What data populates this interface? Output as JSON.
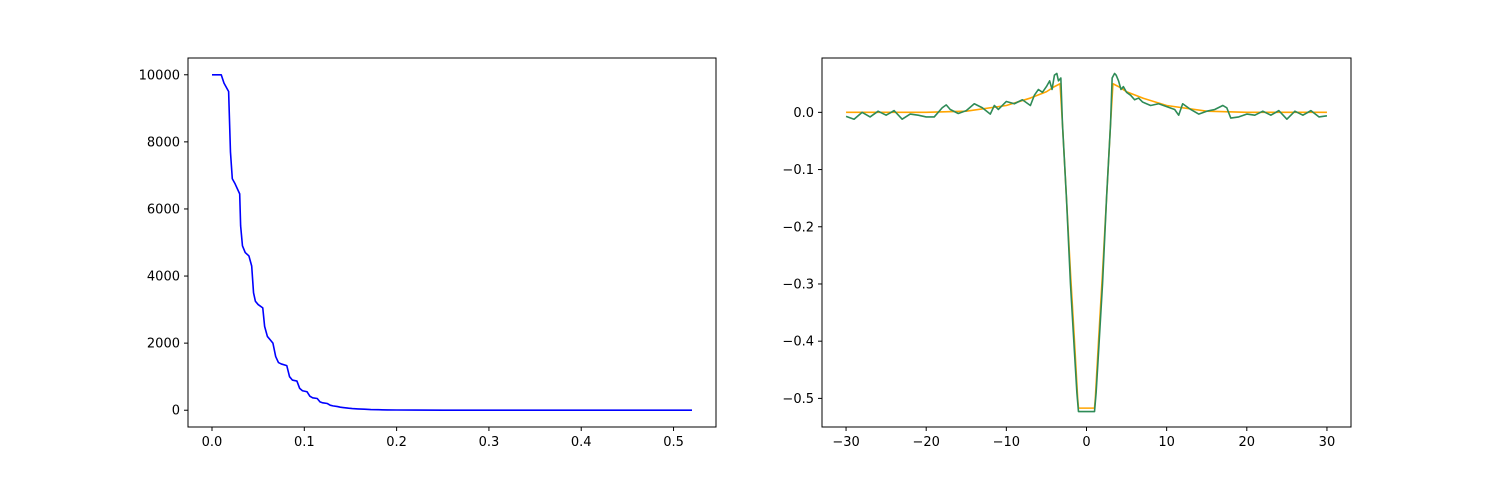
{
  "chart_data": [
    {
      "type": "line",
      "title": "",
      "xlabel": "",
      "ylabel": "",
      "xlim": [
        -0.026,
        0.546
      ],
      "ylim": [
        -500,
        10500
      ],
      "xticks": [
        0.0,
        0.1,
        0.2,
        0.3,
        0.4,
        0.5
      ],
      "xtick_labels": [
        "0.0",
        "0.1",
        "0.2",
        "0.3",
        "0.4",
        "0.5"
      ],
      "yticks": [
        0,
        2000,
        4000,
        6000,
        8000,
        10000
      ],
      "ytick_labels": [
        "0",
        "2000",
        "4000",
        "6000",
        "8000",
        "10000"
      ],
      "grid": false,
      "series": [
        {
          "color": "#0000ff",
          "x": [
            0.0,
            0.01,
            0.013,
            0.018,
            0.02,
            0.022,
            0.025,
            0.03,
            0.031,
            0.033,
            0.036,
            0.04,
            0.043,
            0.045,
            0.047,
            0.05,
            0.055,
            0.057,
            0.06,
            0.063,
            0.066,
            0.069,
            0.072,
            0.075,
            0.081,
            0.084,
            0.087,
            0.092,
            0.095,
            0.098,
            0.103,
            0.106,
            0.109,
            0.114,
            0.117,
            0.12,
            0.125,
            0.128,
            0.131,
            0.136,
            0.139,
            0.142,
            0.148,
            0.152,
            0.158,
            0.165,
            0.172,
            0.18,
            0.19,
            0.2,
            0.22,
            0.25,
            0.3,
            0.35,
            0.4,
            0.45,
            0.52
          ],
          "y": [
            10000,
            10000,
            9750,
            9500,
            7700,
            6900,
            6750,
            6450,
            5500,
            4900,
            4700,
            4600,
            4300,
            3500,
            3250,
            3150,
            3050,
            2500,
            2200,
            2100,
            2000,
            1600,
            1420,
            1380,
            1330,
            1000,
            900,
            870,
            650,
            580,
            550,
            420,
            370,
            350,
            250,
            220,
            200,
            150,
            130,
            110,
            90,
            80,
            60,
            50,
            40,
            30,
            20,
            15,
            10,
            7,
            4,
            2,
            1,
            0.5,
            0.3,
            0.1,
            0
          ]
        }
      ]
    },
    {
      "type": "line",
      "title": "",
      "xlabel": "",
      "ylabel": "",
      "xlim": [
        -33,
        33
      ],
      "ylim": [
        -0.55,
        0.095
      ],
      "xticks": [
        -30,
        -20,
        -10,
        0,
        10,
        20,
        30
      ],
      "xtick_labels": [
        "−30",
        "−20",
        "−10",
        "0",
        "10",
        "20",
        "30"
      ],
      "yticks": [
        0.0,
        -0.1,
        -0.2,
        -0.3,
        -0.4,
        -0.5
      ],
      "ytick_labels": [
        "0.0",
        "−0.1",
        "−0.2",
        "−0.3",
        "−0.4",
        "−0.5"
      ],
      "grid": false,
      "series": [
        {
          "color": "#ffa500",
          "x": [
            -30,
            -20,
            -15,
            -10,
            -7,
            -5,
            -4,
            -3.3,
            -3,
            -2.5,
            -2,
            -1.5,
            -1.1,
            -1,
            1,
            1.1,
            1.5,
            2,
            2.5,
            3,
            3.3,
            4,
            5,
            7,
            10,
            15,
            20,
            30
          ],
          "y": [
            0.0,
            0.0,
            0.002,
            0.012,
            0.025,
            0.036,
            0.045,
            0.05,
            -0.02,
            -0.15,
            -0.28,
            -0.4,
            -0.5,
            -0.517,
            -0.517,
            -0.5,
            -0.4,
            -0.28,
            -0.15,
            -0.02,
            0.05,
            0.045,
            0.036,
            0.025,
            0.012,
            0.002,
            0.0,
            0.0
          ]
        },
        {
          "color": "#2e8b57",
          "x": [
            -30,
            -29,
            -28,
            -27,
            -26,
            -25,
            -24,
            -23,
            -22,
            -21,
            -20,
            -19,
            -18,
            -17.5,
            -17,
            -16,
            -15,
            -14,
            -13,
            -12,
            -11.5,
            -11,
            -10,
            -9,
            -8,
            -7,
            -6.5,
            -6,
            -5.5,
            -5,
            -4.6,
            -4.3,
            -4,
            -3.7,
            -3.5,
            -3.2,
            -3,
            -2.5,
            -2,
            -1.5,
            -1.2,
            -1,
            0,
            1,
            1.2,
            1.5,
            2,
            2.5,
            3,
            3.2,
            3.5,
            3.7,
            4,
            4.3,
            4.6,
            5,
            5.5,
            6,
            6.5,
            7,
            8,
            9,
            10,
            11,
            11.5,
            12,
            13,
            14,
            15,
            16,
            17,
            17.5,
            18,
            19,
            20,
            21,
            22,
            23,
            24,
            25,
            26,
            27,
            28,
            29,
            30
          ],
          "y": [
            -0.007,
            -0.012,
            0.0,
            -0.008,
            0.002,
            -0.005,
            0.003,
            -0.012,
            -0.003,
            -0.005,
            -0.008,
            -0.008,
            0.008,
            0.013,
            0.005,
            -0.002,
            0.003,
            0.015,
            0.008,
            -0.003,
            0.012,
            0.005,
            0.019,
            0.015,
            0.022,
            0.012,
            0.03,
            0.04,
            0.035,
            0.045,
            0.055,
            0.04,
            0.065,
            0.068,
            0.055,
            0.06,
            -0.02,
            -0.15,
            -0.3,
            -0.42,
            -0.49,
            -0.523,
            -0.523,
            -0.523,
            -0.49,
            -0.42,
            -0.3,
            -0.15,
            -0.02,
            0.06,
            0.068,
            0.065,
            0.055,
            0.04,
            0.045,
            0.035,
            0.03,
            0.022,
            0.025,
            0.018,
            0.012,
            0.015,
            0.01,
            0.005,
            -0.005,
            0.015,
            0.005,
            -0.003,
            0.002,
            0.005,
            0.012,
            0.008,
            -0.01,
            -0.008,
            -0.003,
            -0.005,
            0.002,
            -0.005,
            0.003,
            -0.012,
            0.002,
            -0.005,
            0.003,
            -0.008,
            -0.006
          ]
        }
      ]
    }
  ]
}
